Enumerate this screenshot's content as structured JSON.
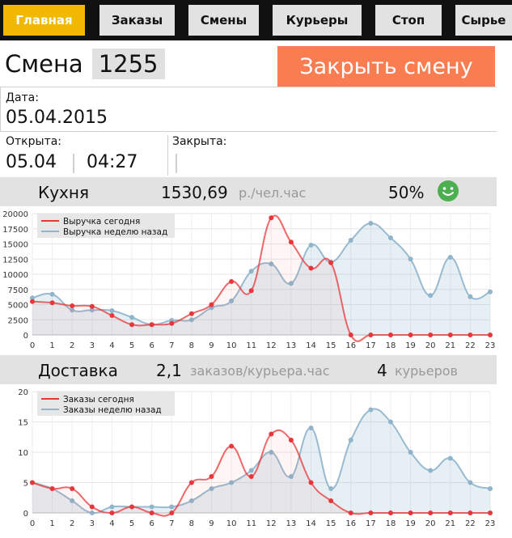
{
  "nav": {
    "tabs": [
      {
        "label": "Главная",
        "active": true
      },
      {
        "label": "Заказы",
        "active": false
      },
      {
        "label": "Смены",
        "active": false
      },
      {
        "label": "Курьеры",
        "active": false
      },
      {
        "label": "Стоп",
        "active": false
      },
      {
        "label": "Сырье",
        "active": false
      }
    ]
  },
  "shift": {
    "title": "Смена",
    "number": "1255",
    "close_button": "Закрыть смену",
    "date_label": "Дата:",
    "date": "05.04.2015",
    "opened_label": "Открыта:",
    "opened_date": "05.04",
    "opened_time": "04:27",
    "closed_label": "Закрыта:"
  },
  "kitchen": {
    "title": "Кухня",
    "value": "1530,69",
    "unit": "р./чел.час",
    "percent": "50%",
    "status_icon": "smiley-icon",
    "status_color": "#4caf50"
  },
  "delivery": {
    "title": "Доставка",
    "value": "2,1",
    "unit": "заказов/курьера.час",
    "couriers_count": "4",
    "couriers_unit": "курьеров"
  },
  "colors": {
    "today": "#e8373a",
    "last_week": "#8fb4cb",
    "accent": "#f0b800",
    "close": "#fa7d52"
  },
  "chart_data": [
    {
      "type": "line",
      "x": [
        0,
        1,
        2,
        3,
        4,
        5,
        6,
        7,
        8,
        9,
        10,
        11,
        12,
        13,
        14,
        15,
        16,
        17,
        18,
        19,
        20,
        21,
        22,
        23
      ],
      "ylim": [
        0,
        20000
      ],
      "yticks": [
        0,
        2500,
        5000,
        7500,
        10000,
        12500,
        15000,
        17500,
        20000
      ],
      "legend_position": "top-left",
      "series": [
        {
          "name": "Выручка сегодня",
          "color": "#e8373a",
          "values": [
            5500,
            5300,
            4800,
            4700,
            3200,
            1700,
            1700,
            1900,
            3500,
            5000,
            8800,
            7300,
            19300,
            15300,
            11000,
            11900,
            0,
            0,
            0,
            0,
            0,
            0,
            0,
            0
          ]
        },
        {
          "name": "Выручка неделю назад",
          "color": "#8fb4cb",
          "values": [
            6100,
            6700,
            4100,
            4100,
            4000,
            2900,
            1700,
            2400,
            2500,
            4500,
            5600,
            10500,
            11700,
            8500,
            14800,
            12000,
            15600,
            18400,
            16000,
            12500,
            6500,
            12800,
            6300,
            7100
          ]
        }
      ]
    },
    {
      "type": "line",
      "x": [
        0,
        1,
        2,
        3,
        4,
        5,
        6,
        7,
        8,
        9,
        10,
        11,
        12,
        13,
        14,
        15,
        16,
        17,
        18,
        19,
        20,
        21,
        22,
        23
      ],
      "ylim": [
        0,
        20
      ],
      "yticks": [
        0,
        5,
        10,
        15,
        20
      ],
      "legend_position": "top-left",
      "series": [
        {
          "name": "Заказы сегодня",
          "color": "#e8373a",
          "values": [
            5,
            4,
            4,
            1,
            0,
            1,
            0,
            0,
            5,
            6,
            11,
            6,
            13,
            12,
            5,
            2,
            0,
            0,
            0,
            0,
            0,
            0,
            0,
            0
          ]
        },
        {
          "name": "Заказы неделю назад",
          "color": "#8fb4cb",
          "values": [
            5,
            4,
            2,
            0,
            1,
            1,
            1,
            1,
            2,
            4,
            5,
            7,
            10,
            6,
            14,
            4,
            12,
            17,
            15,
            10,
            7,
            9,
            5,
            4
          ]
        }
      ]
    }
  ]
}
